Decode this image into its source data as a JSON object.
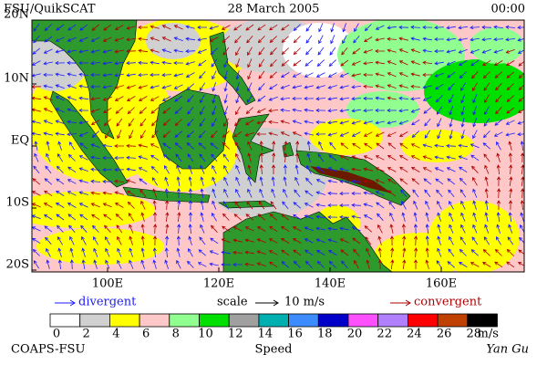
{
  "header": {
    "source": "FSU/QuikSCAT",
    "date": "28 March 2005",
    "time": "00:00"
  },
  "map": {
    "lat_labels": [
      "20N",
      "10N",
      "EQ",
      "10S",
      "20S"
    ],
    "lon_labels": [
      "100E",
      "120E",
      "140E",
      "160E"
    ]
  },
  "legend": {
    "divergent": "divergent",
    "scale": "scale",
    "scale_value": "10 m/s",
    "convergent": "convergent"
  },
  "colorbar": {
    "ticks": [
      "0",
      "2",
      "4",
      "6",
      "8",
      "10",
      "12",
      "14",
      "16",
      "18",
      "20",
      "22",
      "24",
      "26",
      "28"
    ],
    "unit": "m/s",
    "title": "Speed"
  },
  "footer": {
    "left": "COAPS-FSU",
    "right": "Yan Gu"
  }
}
